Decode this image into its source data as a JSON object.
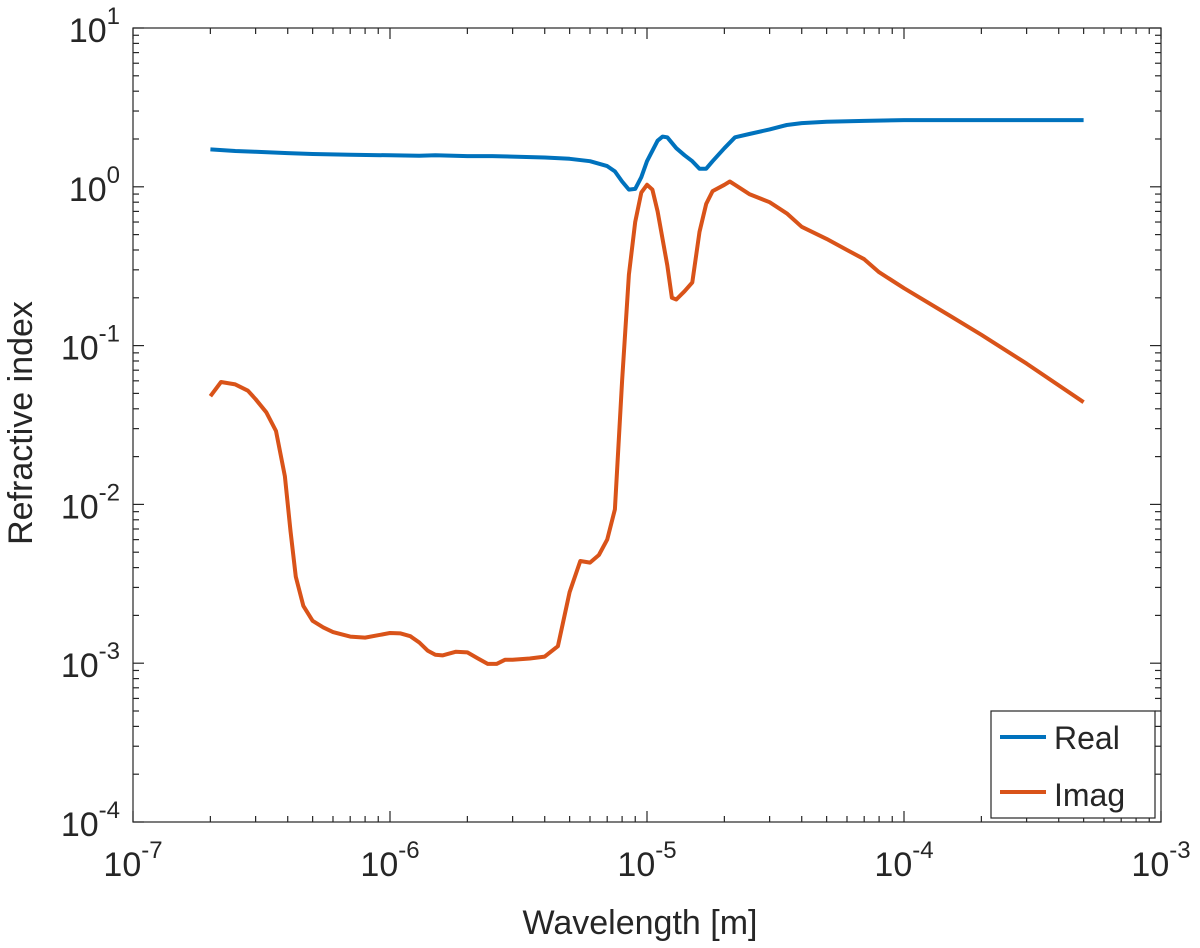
{
  "chart_data": {
    "type": "line",
    "xscale": "log",
    "yscale": "log",
    "xlabel": "Wavelength [m]",
    "ylabel": "Refractive index",
    "xlim": [
      1e-07,
      0.001
    ],
    "ylim": [
      0.0001,
      10
    ],
    "x_ticks": [
      {
        "value": 1e-07,
        "base": "10",
        "exp": "-7"
      },
      {
        "value": 1e-06,
        "base": "10",
        "exp": "-6"
      },
      {
        "value": 1e-05,
        "base": "10",
        "exp": "-5"
      },
      {
        "value": 0.0001,
        "base": "10",
        "exp": "-4"
      },
      {
        "value": 0.001,
        "base": "10",
        "exp": "-3"
      }
    ],
    "y_ticks": [
      {
        "value": 0.0001,
        "base": "10",
        "exp": "-4"
      },
      {
        "value": 0.001,
        "base": "10",
        "exp": "-3"
      },
      {
        "value": 0.01,
        "base": "10",
        "exp": "-2"
      },
      {
        "value": 0.1,
        "base": "10",
        "exp": "-1"
      },
      {
        "value": 1,
        "base": "10",
        "exp": "0"
      },
      {
        "value": 10,
        "base": "10",
        "exp": "1"
      }
    ],
    "legend_position": "bottom-right",
    "series": [
      {
        "name": "Real",
        "color": "#0072BD",
        "points": [
          [
            2e-07,
            1.72
          ],
          [
            2.5e-07,
            1.68
          ],
          [
            3e-07,
            1.66
          ],
          [
            4e-07,
            1.63
          ],
          [
            5e-07,
            1.61
          ],
          [
            7e-07,
            1.59
          ],
          [
            1e-06,
            1.58
          ],
          [
            1.3e-06,
            1.57
          ],
          [
            1.5e-06,
            1.58
          ],
          [
            2e-06,
            1.56
          ],
          [
            2.5e-06,
            1.56
          ],
          [
            3e-06,
            1.55
          ],
          [
            4e-06,
            1.53
          ],
          [
            5e-06,
            1.5
          ],
          [
            6e-06,
            1.45
          ],
          [
            7e-06,
            1.35
          ],
          [
            7.5e-06,
            1.25
          ],
          [
            8e-06,
            1.08
          ],
          [
            8.5e-06,
            0.96
          ],
          [
            9e-06,
            0.97
          ],
          [
            9.5e-06,
            1.15
          ],
          [
            1e-05,
            1.45
          ],
          [
            1.1e-05,
            1.95
          ],
          [
            1.15e-05,
            2.07
          ],
          [
            1.2e-05,
            2.05
          ],
          [
            1.3e-05,
            1.75
          ],
          [
            1.4e-05,
            1.58
          ],
          [
            1.5e-05,
            1.45
          ],
          [
            1.6e-05,
            1.3
          ],
          [
            1.7e-05,
            1.3
          ],
          [
            1.8e-05,
            1.45
          ],
          [
            2e-05,
            1.75
          ],
          [
            2.2e-05,
            2.05
          ],
          [
            2.5e-05,
            2.15
          ],
          [
            3e-05,
            2.3
          ],
          [
            3.5e-05,
            2.45
          ],
          [
            4e-05,
            2.52
          ],
          [
            5e-05,
            2.57
          ],
          [
            7e-05,
            2.6
          ],
          [
            0.0001,
            2.63
          ],
          [
            0.0002,
            2.63
          ],
          [
            0.0005,
            2.63
          ]
        ]
      },
      {
        "name": "Imag",
        "color": "#D95319",
        "points": [
          [
            2e-07,
            0.048
          ],
          [
            2.2e-07,
            0.059
          ],
          [
            2.5e-07,
            0.057
          ],
          [
            2.8e-07,
            0.052
          ],
          [
            3e-07,
            0.046
          ],
          [
            3.3e-07,
            0.038
          ],
          [
            3.6e-07,
            0.029
          ],
          [
            3.9e-07,
            0.015
          ],
          [
            4.1e-07,
            0.0068
          ],
          [
            4.3e-07,
            0.0035
          ],
          [
            4.6e-07,
            0.0023
          ],
          [
            5e-07,
            0.00185
          ],
          [
            5.5e-07,
            0.00168
          ],
          [
            6e-07,
            0.00157
          ],
          [
            7e-07,
            0.00147
          ],
          [
            8e-07,
            0.00145
          ],
          [
            9e-07,
            0.0015
          ],
          [
            1e-06,
            0.00155
          ],
          [
            1.1e-06,
            0.00154
          ],
          [
            1.2e-06,
            0.00148
          ],
          [
            1.3e-06,
            0.00135
          ],
          [
            1.4e-06,
            0.0012
          ],
          [
            1.5e-06,
            0.00113
          ],
          [
            1.6e-06,
            0.00112
          ],
          [
            1.7e-06,
            0.00115
          ],
          [
            1.8e-06,
            0.00118
          ],
          [
            2e-06,
            0.00117
          ],
          [
            2.2e-06,
            0.00107
          ],
          [
            2.4e-06,
            0.00099
          ],
          [
            2.6e-06,
            0.00099
          ],
          [
            2.8e-06,
            0.00105
          ],
          [
            3e-06,
            0.00105
          ],
          [
            3.5e-06,
            0.00107
          ],
          [
            4e-06,
            0.0011
          ],
          [
            4.5e-06,
            0.00128
          ],
          [
            5e-06,
            0.0028
          ],
          [
            5.5e-06,
            0.0044
          ],
          [
            6e-06,
            0.0043
          ],
          [
            6.5e-06,
            0.0048
          ],
          [
            7e-06,
            0.006
          ],
          [
            7.5e-06,
            0.0093
          ],
          [
            8e-06,
            0.06
          ],
          [
            8.5e-06,
            0.28
          ],
          [
            9e-06,
            0.6
          ],
          [
            9.5e-06,
            0.92
          ],
          [
            1e-05,
            1.03
          ],
          [
            1.05e-05,
            0.96
          ],
          [
            1.1e-05,
            0.7
          ],
          [
            1.2e-05,
            0.32
          ],
          [
            1.25e-05,
            0.2
          ],
          [
            1.3e-05,
            0.195
          ],
          [
            1.4e-05,
            0.22
          ],
          [
            1.5e-05,
            0.25
          ],
          [
            1.6e-05,
            0.52
          ],
          [
            1.7e-05,
            0.78
          ],
          [
            1.8e-05,
            0.94
          ],
          [
            2e-05,
            1.03
          ],
          [
            2.1e-05,
            1.08
          ],
          [
            2.2e-05,
            1.03
          ],
          [
            2.5e-05,
            0.9
          ],
          [
            3e-05,
            0.8
          ],
          [
            3.5e-05,
            0.68
          ],
          [
            4e-05,
            0.56
          ],
          [
            5e-05,
            0.47
          ],
          [
            6e-05,
            0.4
          ],
          [
            7e-05,
            0.35
          ],
          [
            8e-05,
            0.29
          ],
          [
            0.0001,
            0.23
          ],
          [
            0.00015,
            0.155
          ],
          [
            0.0002,
            0.117
          ],
          [
            0.0003,
            0.077
          ],
          [
            0.0005,
            0.044
          ]
        ]
      }
    ]
  }
}
